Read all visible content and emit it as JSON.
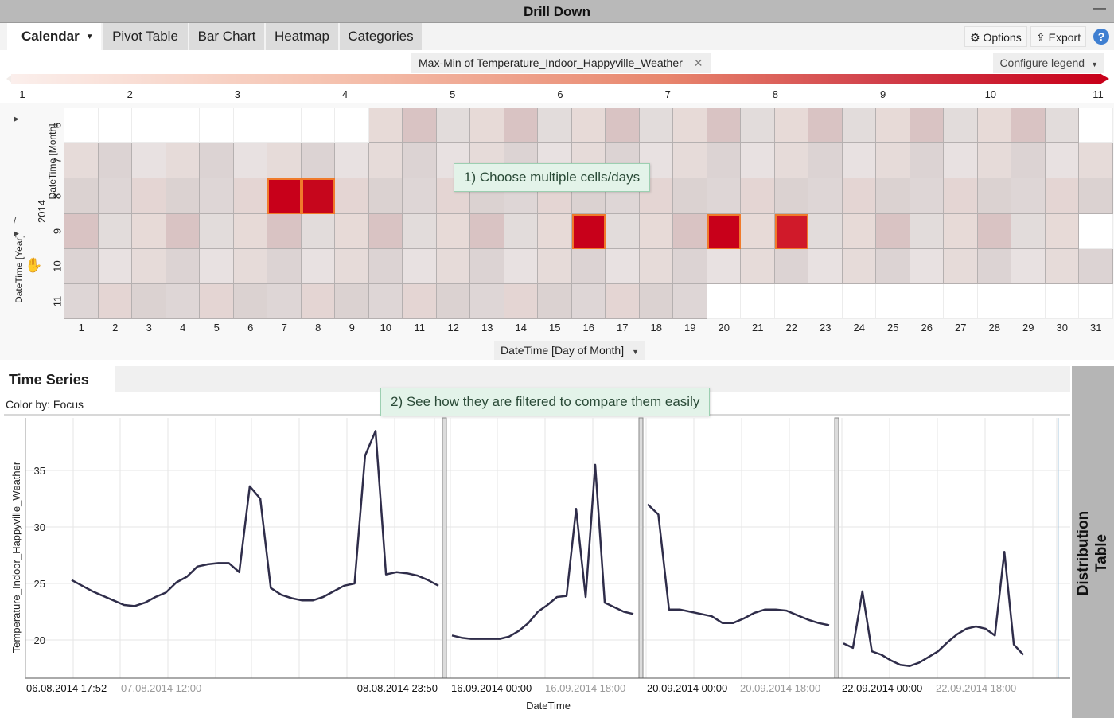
{
  "window": {
    "title": "Drill Down"
  },
  "tabs": [
    {
      "label": "Calendar",
      "active": true
    },
    {
      "label": "Pivot Table"
    },
    {
      "label": "Bar Chart"
    },
    {
      "label": "Heatmap"
    },
    {
      "label": "Categories"
    }
  ],
  "toolbar": {
    "options_label": "Options",
    "export_label": "Export",
    "help_label": "?"
  },
  "legend": {
    "measure_label": "Max-Min of Temperature_Indoor_Happyville_Weather",
    "configure_label": "Configure legend",
    "ticks": [
      "1",
      "2",
      "3",
      "4",
      "5",
      "6",
      "7",
      "8",
      "9",
      "10",
      "11"
    ]
  },
  "calendar": {
    "y_axis_month_label": "DateTime [Month]",
    "y_axis_year_label": "DateTime [Year]",
    "y_axis_separator": "/",
    "year": "2014",
    "months": [
      "6",
      "7",
      "8",
      "9",
      "10",
      "11"
    ],
    "days": [
      "1",
      "2",
      "3",
      "4",
      "5",
      "6",
      "7",
      "8",
      "9",
      "10",
      "11",
      "12",
      "13",
      "14",
      "15",
      "16",
      "17",
      "18",
      "19",
      "20",
      "21",
      "22",
      "23",
      "24",
      "25",
      "26",
      "27",
      "28",
      "29",
      "30",
      "31"
    ],
    "x_axis_label": "DateTime [Day of Month]",
    "selected_cells": [
      {
        "month": "8",
        "day": "7"
      },
      {
        "month": "8",
        "day": "8"
      },
      {
        "month": "9",
        "day": "16"
      },
      {
        "month": "9",
        "day": "20"
      },
      {
        "month": "9",
        "day": "22"
      }
    ]
  },
  "callouts": {
    "first": "1) Choose multiple cells/days",
    "second": "2) See how they are filtered to compare them easily"
  },
  "time_series": {
    "title": "Time Series",
    "color_by": "Color by: Focus",
    "y_label": "Temperature_Indoor_Happyville_Weather",
    "x_label": "DateTime",
    "y_ticks": [
      "20",
      "25",
      "30",
      "35"
    ],
    "panel_labels": [
      {
        "start": "06.08.2014 17:52",
        "mid": "07.08.2014 12:00",
        "end": "08.08.2014 23:50"
      },
      {
        "start": "16.09.2014 00:00",
        "mid": "16.09.2014 18:00"
      },
      {
        "start": "20.09.2014 00:00",
        "mid": "20.09.2014 18:00"
      },
      {
        "start": "22.09.2014 00:00",
        "mid": "22.09.2014 18:00"
      }
    ]
  },
  "side_panel": {
    "line1": "Distribution",
    "line2": "Table"
  },
  "colors": {
    "selected_cell": "#c8001a",
    "selection_border": "#f07a2b",
    "series_line": "#2f2d4a",
    "callout_bg": "#e3f3e9"
  },
  "chart_data": {
    "type": "line",
    "ylabel": "Temperature_Indoor_Happyville_Weather",
    "xlabel": "DateTime",
    "ylim": [
      17,
      39
    ],
    "grid": true,
    "series": [
      {
        "values": [
          25.3,
          24.8,
          24.3,
          23.9,
          23.5,
          23.1,
          23.0,
          23.3,
          23.8,
          24.2,
          25.1,
          25.6,
          26.5,
          26.7,
          26.8,
          26.8,
          26.0,
          33.6,
          32.5,
          24.6,
          24.0,
          23.7,
          23.5,
          23.5,
          23.8,
          24.3,
          24.8,
          25.0,
          36.3,
          38.5,
          25.8,
          26.0,
          25.9,
          25.7,
          25.3,
          24.8
        ]
      },
      {
        "values": [
          20.4,
          20.2,
          20.1,
          20.1,
          20.1,
          20.1,
          20.3,
          20.8,
          21.5,
          22.5,
          23.1,
          23.8,
          23.9,
          31.6,
          23.8,
          35.5,
          23.3,
          22.9,
          22.5,
          22.3
        ]
      },
      {
        "values": [
          32.0,
          31.1,
          22.7,
          22.7,
          22.5,
          22.3,
          22.1,
          21.5,
          21.5,
          21.9,
          22.4,
          22.7,
          22.7,
          22.6,
          22.2,
          21.8,
          21.5,
          21.3
        ]
      },
      {
        "values": [
          19.7,
          19.3,
          24.3,
          19.0,
          18.7,
          18.2,
          17.8,
          17.7,
          18.0,
          18.5,
          19.0,
          19.8,
          20.5,
          21.0,
          21.2,
          21.0,
          20.4,
          27.8,
          19.6,
          18.7
        ]
      }
    ]
  }
}
